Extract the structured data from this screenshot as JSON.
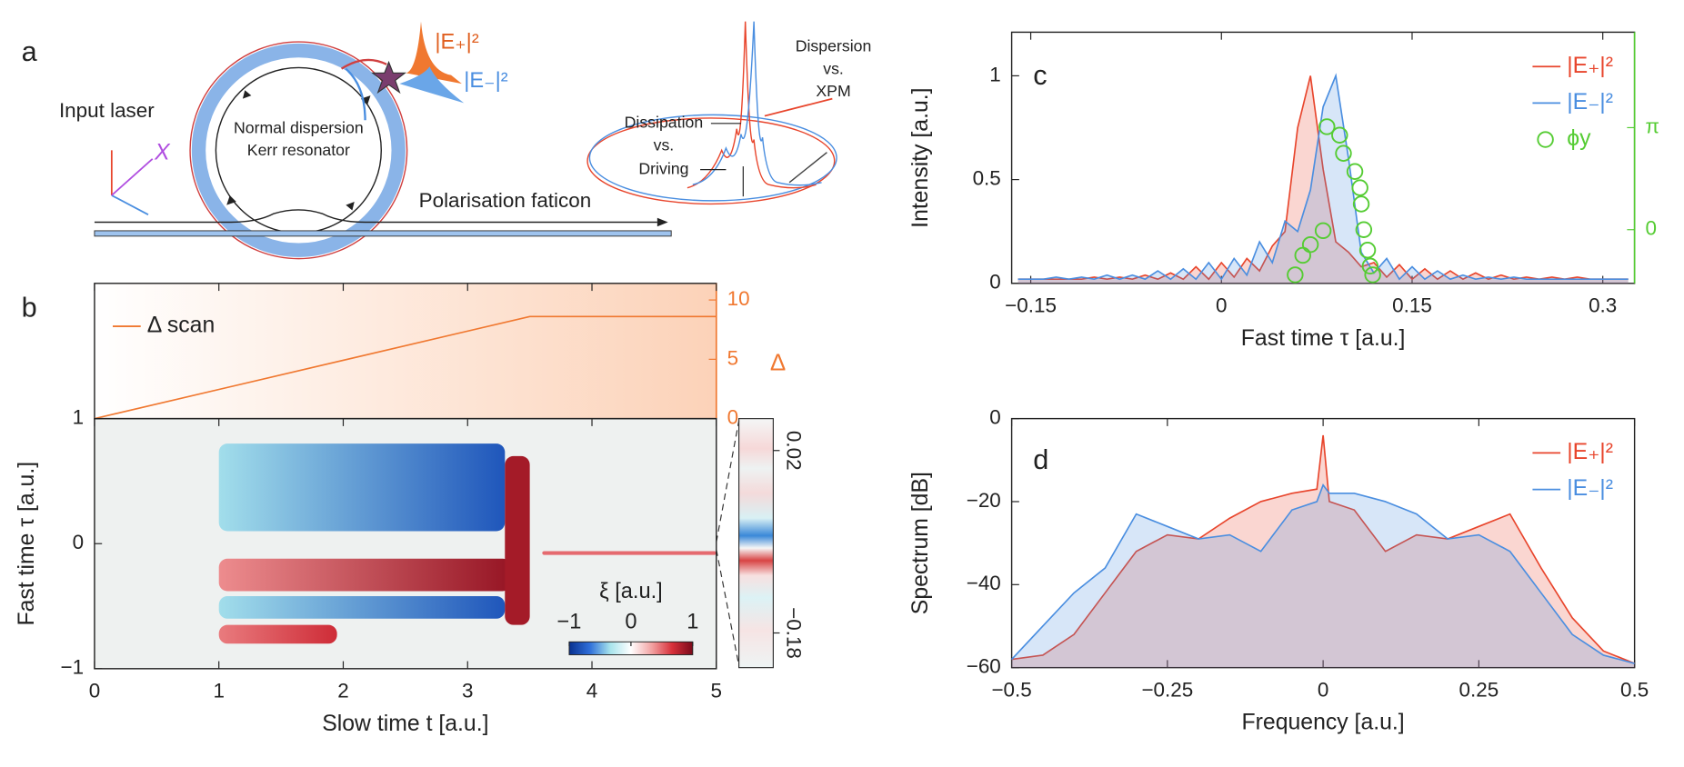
{
  "diagram": {
    "panel": "a",
    "input": "Input laser",
    "axis": "X",
    "ring_line1": "Normal dispersion",
    "ring_line2": "Kerr resonator",
    "e_plus": "|E₊|²",
    "e_minus": "|E₋|²",
    "output": "Polarisation faticon",
    "disp1": "Dispersion",
    "disp2": "vs.",
    "disp3": "XPM",
    "diss1": "Dissipation",
    "diss2": "vs.",
    "diss3": "Driving"
  },
  "chart_data": [
    {
      "type": "line",
      "panel": "b",
      "xlim": [
        0,
        5
      ],
      "y2lim": [
        0,
        11.4
      ],
      "y2ticks": [
        0,
        5,
        10
      ],
      "y2label": "Δ",
      "y2color": "#f07830",
      "legend": "upper left",
      "series": [
        {
          "name": "Δ scan",
          "color": "#f07830",
          "axis": "y2",
          "x": [
            0,
            3.5,
            5
          ],
          "values": [
            0,
            8.6,
            8.6
          ]
        }
      ]
    },
    {
      "type": "heatmap",
      "xlim": [
        0,
        5
      ],
      "ylim": [
        -1,
        1
      ],
      "xticks": [
        0,
        1,
        2,
        3,
        4,
        5
      ],
      "yticks": [
        {
          "value": -1,
          "label": "−1"
        },
        0,
        1
      ],
      "xlabel": "Slow time t [a.u.]",
      "ylabel": "Fast time τ [a.u.]",
      "colorbar": {
        "label": "ξ [a.u.]",
        "ticks": [
          {
            "value": -1,
            "label": "−1"
          },
          0,
          1
        ],
        "colors": [
          "#08308f",
          "#2f6fd9",
          "#a8e4ec",
          "#ffffff",
          "#f2a3a3",
          "#d7303a",
          "#7a0a1a"
        ]
      },
      "regions": [
        {
          "t": [
            1,
            3.3
          ],
          "tau": [
            0.1,
            0.8
          ],
          "xi": [
            -0.35,
            -0.8
          ]
        },
        {
          "t": [
            1,
            3.35
          ],
          "tau": [
            -0.38,
            -0.12
          ],
          "xi": [
            0.4,
            0.9
          ]
        },
        {
          "t": [
            1,
            3.3
          ],
          "tau": [
            -0.6,
            -0.42
          ],
          "xi": [
            -0.35,
            -0.8
          ]
        },
        {
          "t": [
            1,
            1.95
          ],
          "tau": [
            -0.8,
            -0.65
          ],
          "xi": [
            0.45,
            0.7
          ]
        },
        {
          "t": [
            3.3,
            3.5
          ],
          "tau": [
            -0.65,
            0.7
          ],
          "xi": [
            0.85,
            0.85
          ]
        },
        {
          "t": [
            3.6,
            5
          ],
          "tau": [
            -0.09,
            -0.06
          ],
          "xi": [
            0.5,
            0.5
          ]
        }
      ],
      "inset_ylim": [
        -0.218,
        0.055
      ],
      "inset_ticks": [
        0.02,
        {
          "value": -0.18,
          "label": "−0.18"
        }
      ]
    },
    {
      "type": "line",
      "panel": "c",
      "fill": true,
      "xlim": [
        -0.165,
        0.325
      ],
      "ylim": [
        0,
        1.21
      ],
      "y2lim": [
        -1.653,
        6.08
      ],
      "y2color": "#55cc33",
      "xticks": [
        {
          "value": -0.15,
          "label": "−0.15"
        },
        0,
        0.15,
        0.3
      ],
      "yticks": [
        0,
        0.5,
        1
      ],
      "y2ticks": [
        0,
        {
          "value": 3.1416,
          "label": "π"
        }
      ],
      "xlabel": "Fast time τ [a.u.]",
      "ylabel": "Intensity [a.u.]",
      "legend": "upper right",
      "x": [
        -0.16,
        -0.15,
        -0.14,
        -0.13,
        -0.12,
        -0.11,
        -0.1,
        -0.09,
        -0.08,
        -0.07,
        -0.06,
        -0.05,
        -0.04,
        -0.03,
        -0.02,
        -0.01,
        0,
        0.01,
        0.02,
        0.03,
        0.04,
        0.05,
        0.06,
        0.07,
        0.08,
        0.09,
        0.1,
        0.11,
        0.12,
        0.13,
        0.14,
        0.15,
        0.16,
        0.17,
        0.18,
        0.19,
        0.2,
        0.21,
        0.22,
        0.23,
        0.24,
        0.25,
        0.26,
        0.27,
        0.28,
        0.29,
        0.3,
        0.31,
        0.32
      ],
      "series": [
        {
          "name": "|E₊|²",
          "color": "#e8452c",
          "values": [
            0.02,
            0.02,
            0.02,
            0.02,
            0.02,
            0.02,
            0.03,
            0.02,
            0.03,
            0.02,
            0.04,
            0.02,
            0.05,
            0.02,
            0.08,
            0.02,
            0.1,
            0.03,
            0.12,
            0.06,
            0.18,
            0.25,
            0.75,
            1.0,
            0.55,
            0.2,
            0.15,
            0.08,
            0.1,
            0.03,
            0.09,
            0.02,
            0.07,
            0.02,
            0.06,
            0.02,
            0.05,
            0.02,
            0.04,
            0.02,
            0.03,
            0.02,
            0.03,
            0.02,
            0.03,
            0.02,
            0.02,
            0.02,
            0.02
          ]
        },
        {
          "name": "|E₋|²",
          "color": "#4a8ee0",
          "values": [
            0.02,
            0.02,
            0.02,
            0.03,
            0.02,
            0.03,
            0.02,
            0.04,
            0.02,
            0.04,
            0.02,
            0.06,
            0.02,
            0.07,
            0.02,
            0.1,
            0.02,
            0.12,
            0.04,
            0.2,
            0.1,
            0.3,
            0.25,
            0.45,
            0.85,
            1.0,
            0.6,
            0.15,
            0.05,
            0.12,
            0.02,
            0.08,
            0.02,
            0.06,
            0.02,
            0.04,
            0.02,
            0.03,
            0.02,
            0.03,
            0.02,
            0.02,
            0.02,
            0.02,
            0.02,
            0.02,
            0.02,
            0.02,
            0.02
          ]
        },
        {
          "name": "ϕy",
          "color": "#55cc33",
          "type": "scatter",
          "axis": "y2",
          "x": [
            0.058,
            0.064,
            0.07,
            0.08,
            0.083,
            0.093,
            0.096,
            0.105,
            0.109,
            0.11,
            0.112,
            0.115,
            0.117,
            0.119
          ],
          "values": [
            -1.39,
            -0.79,
            -0.46,
            -0.03,
            3.17,
            2.91,
            2.35,
            1.79,
            1.29,
            0.79,
            0,
            -0.63,
            -1.12,
            -1.39
          ]
        }
      ]
    },
    {
      "type": "line",
      "panel": "d",
      "fill": true,
      "xlim": [
        -0.5,
        0.5
      ],
      "ylim": [
        -60,
        0
      ],
      "xticks": [
        {
          "value": -0.5,
          "label": "−0.5"
        },
        {
          "value": -0.25,
          "label": "−0.25"
        },
        0,
        0.25,
        0.5
      ],
      "yticks": [
        {
          "value": -60,
          "label": "−60"
        },
        {
          "value": -40,
          "label": "−40"
        },
        {
          "value": -20,
          "label": "−20"
        },
        0
      ],
      "xlabel": "Frequency [a.u.]",
      "ylabel": "Spectrum [dB]",
      "legend": "upper right",
      "x": [
        -0.5,
        -0.45,
        -0.4,
        -0.35,
        -0.3,
        -0.25,
        -0.2,
        -0.15,
        -0.1,
        -0.05,
        -0.01,
        0,
        0.01,
        0.05,
        0.1,
        0.15,
        0.2,
        0.25,
        0.3,
        0.35,
        0.4,
        0.45,
        0.5
      ],
      "series": [
        {
          "name": "|E₊|²",
          "color": "#e8452c",
          "values": [
            -58,
            -57,
            -52,
            -42,
            -32,
            -28,
            -29,
            -24,
            -20,
            -18,
            -17,
            -4,
            -20,
            -22,
            -32,
            -28,
            -29,
            -26,
            -23,
            -36,
            -48,
            -56,
            -59
          ]
        },
        {
          "name": "|E₋|²",
          "color": "#4a8ee0",
          "values": [
            -58,
            -50,
            -42,
            -36,
            -23,
            -26,
            -29,
            -28,
            -32,
            -22,
            -20,
            -16,
            -18,
            -18,
            -20,
            -23,
            -29,
            -28,
            -32,
            -42,
            -52,
            -57,
            -59
          ]
        }
      ]
    }
  ]
}
